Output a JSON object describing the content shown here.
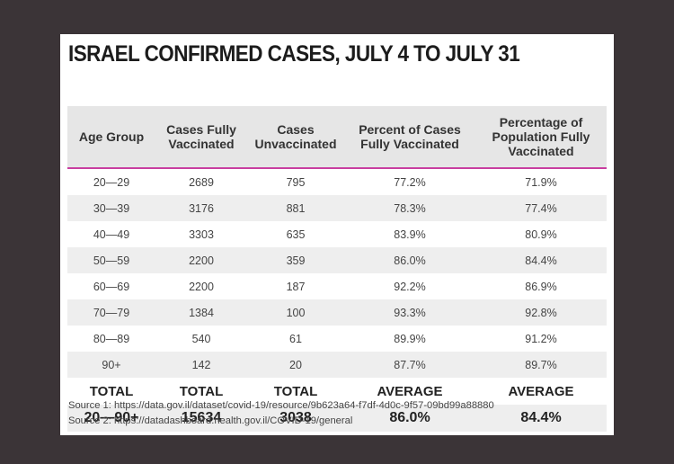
{
  "title": "ISRAEL CONFIRMED CASES, JULY 4 TO JULY 31",
  "chart_data": {
    "type": "table",
    "title": "ISRAEL CONFIRMED CASES, JULY 4 TO JULY 31",
    "columns": [
      "Age Group",
      "Cases Fully Vaccinated",
      "Cases Unvaccinated",
      "Percent of Cases Fully Vaccinated",
      "Percentage of Population Fully Vaccinated"
    ],
    "rows": [
      [
        "20—29",
        "2689",
        "795",
        "77.2%",
        "71.9%"
      ],
      [
        "30—39",
        "3176",
        "881",
        "78.3%",
        "77.4%"
      ],
      [
        "40—49",
        "3303",
        "635",
        "83.9%",
        "80.9%"
      ],
      [
        "50—59",
        "2200",
        "359",
        "86.0%",
        "84.4%"
      ],
      [
        "60—69",
        "2200",
        "187",
        "92.2%",
        "86.9%"
      ],
      [
        "70—79",
        "1384",
        "100",
        "93.3%",
        "92.8%"
      ],
      [
        "80—89",
        "540",
        "61",
        "89.9%",
        "91.2%"
      ],
      [
        "90+",
        "142",
        "20",
        "87.7%",
        "89.7%"
      ]
    ],
    "summary_labels": [
      "TOTAL",
      "TOTAL",
      "TOTAL",
      "AVERAGE",
      "AVERAGE"
    ],
    "summary_values": [
      "20—90+",
      "15634",
      "3038",
      "86.0%",
      "84.4%"
    ]
  },
  "sources": [
    "Source 1: https://data.gov.il/dataset/covid-19/resource/9b623a64-f7df-4d0c-9f57-09bd99a88880",
    "Source 2: https://datadashboard.health.gov.il/COVID-19/general"
  ],
  "colors": {
    "background": "#3b3437",
    "header_fill": "#e6e6e6",
    "header_rule": "#c93ea0",
    "row_shade": "#eeeeee"
  }
}
